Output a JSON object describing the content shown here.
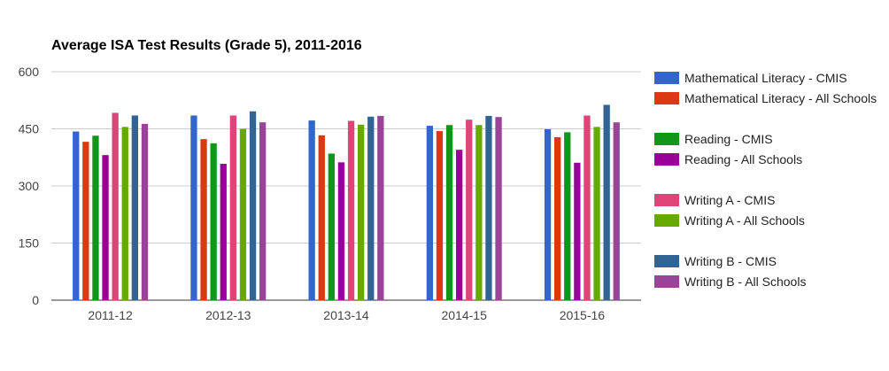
{
  "chart_data": {
    "type": "bar",
    "title": "Average ISA Test Results (Grade 5), 2011-2016",
    "xlabel": "",
    "ylabel": "",
    "ylim": [
      0,
      600
    ],
    "yticks": [
      "0",
      "150",
      "300",
      "450",
      "600"
    ],
    "grid": true,
    "legend_position": "right",
    "categories": [
      "2011-12",
      "2012-13",
      "2013-14",
      "2014-15",
      "2015-16"
    ],
    "series": [
      {
        "name": "Mathematical Literacy - CMIS",
        "color": "#3366cc",
        "values": [
          443,
          485,
          472,
          458,
          449
        ]
      },
      {
        "name": "Mathematical Literacy - All Schools",
        "color": "#dc3912",
        "values": [
          416,
          423,
          433,
          444,
          428
        ]
      },
      {
        "name": "Reading - CMIS",
        "color": "#109618",
        "values": [
          432,
          412,
          385,
          460,
          441
        ]
      },
      {
        "name": "Reading - All Schools",
        "color": "#990099",
        "values": [
          381,
          358,
          362,
          395,
          361
        ]
      },
      {
        "name": "Writing A - CMIS",
        "color": "#dd4477",
        "values": [
          492,
          485,
          471,
          474,
          485
        ]
      },
      {
        "name": "Writing A - All Schools",
        "color": "#66aa00",
        "values": [
          455,
          450,
          461,
          460,
          455
        ]
      },
      {
        "name": "Writing B - CMIS",
        "color": "#316395",
        "values": [
          485,
          496,
          482,
          484,
          513
        ]
      },
      {
        "name": "Writing B - All Schools",
        "color": "#994499",
        "values": [
          463,
          467,
          484,
          481,
          467
        ]
      }
    ]
  }
}
